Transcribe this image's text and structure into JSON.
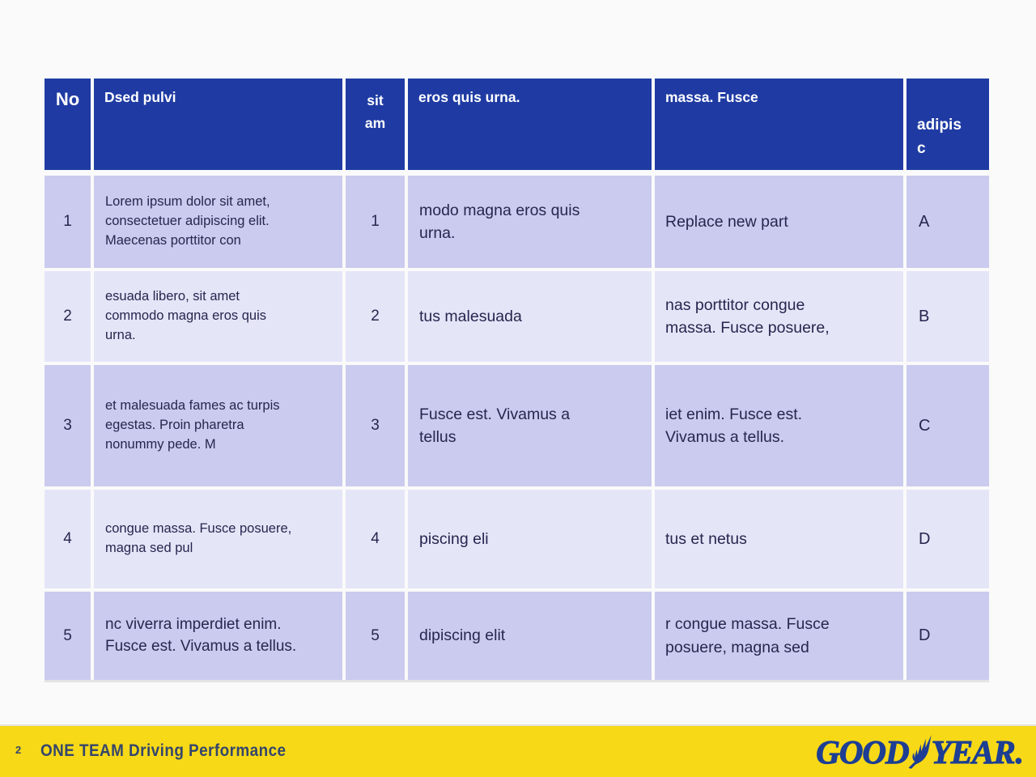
{
  "colors": {
    "page_bg": "#fafafa",
    "table_header_bg": "#1f3ba3",
    "row_dark": "#cbcbef",
    "row_light": "#e5e5f8",
    "cell_text": "#26264f",
    "footer_bg": "#f7d917",
    "footer_text": "#35466b",
    "logo_blue": "#1d3e93"
  },
  "table": {
    "header": {
      "columns": [
        "No",
        "Dsed pulvi",
        "sit\nam",
        "eros quis urna.",
        "massa. Fusce",
        "adipis\nc"
      ]
    },
    "rows": [
      [
        "1",
        "Lorem ipsum dolor sit amet, consectetuer adipiscing elit. Maecenas porttitor con",
        "1",
        "modo magna eros quis urna.",
        "Replace new part",
        "A"
      ],
      [
        "2",
        "esuada libero, sit amet commodo magna eros quis urna.",
        "2",
        "tus malesuada",
        "nas porttitor congue massa. Fusce posuere,",
        "B"
      ],
      [
        "3",
        "et malesuada fames ac turpis egestas. Proin pharetra nonummy pede. M",
        "3",
        "Fusce est. Vivamus a tellus",
        "iet enim. Fusce est. Vivamus a tellus.",
        "C"
      ],
      [
        "4",
        "congue massa. Fusce posuere, magna sed pul",
        "4",
        "piscing eli",
        "tus et netus",
        "D"
      ],
      [
        "5",
        "nc viverra imperdiet enim. Fusce est. Vivamus a tellus.",
        "5",
        "dipiscing elit",
        "r congue massa. Fusce posuere, magna sed",
        "D"
      ]
    ]
  },
  "footer": {
    "page_number": "2",
    "title": "ONE TEAM Driving Performance",
    "logo": {
      "part1": "GOOD",
      "part2": "YEAR",
      "suffix": "."
    }
  }
}
